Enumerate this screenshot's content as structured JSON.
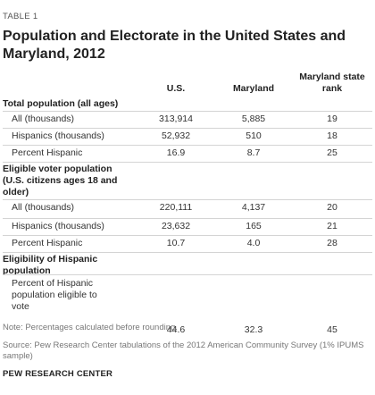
{
  "table_label": "TABLE 1",
  "title": "Population and Electorate in the United States and Maryland, 2012",
  "columns": {
    "us": "U.S.",
    "maryland": "Maryland",
    "rank": "Maryland state rank"
  },
  "sections": [
    {
      "heading": "Total population (all ages)",
      "rows": [
        {
          "label": "All (thousands)",
          "us": "313,914",
          "maryland": "5,885",
          "rank": "19"
        },
        {
          "label": "Hispanics (thousands)",
          "us": "52,932",
          "maryland": "510",
          "rank": "18"
        },
        {
          "label": "Percent Hispanic",
          "us": "16.9",
          "maryland": "8.7",
          "rank": "25"
        }
      ]
    },
    {
      "heading": "Eligible voter population (U.S. citizens ages 18 and older)",
      "rows": [
        {
          "label": "All (thousands)",
          "us": "220,111",
          "maryland": "4,137",
          "rank": "20"
        },
        {
          "label": "Hispanics (thousands)",
          "us": "23,632",
          "maryland": "165",
          "rank": "21"
        },
        {
          "label": "Percent Hispanic",
          "us": "10.7",
          "maryland": "4.0",
          "rank": "28"
        }
      ]
    },
    {
      "heading": "Eligibility of Hispanic population",
      "rows": [
        {
          "label": "Percent of Hispanic population eligible to vote",
          "us": "44.6",
          "maryland": "32.3",
          "rank": "45"
        }
      ]
    }
  ],
  "note": "Note: Percentages calculated before rounding.",
  "source": "Source: Pew Research Center tabulations of the 2012 American Community Survey (1% IPUMS sample)",
  "org": "PEW RESEARCH CENTER"
}
